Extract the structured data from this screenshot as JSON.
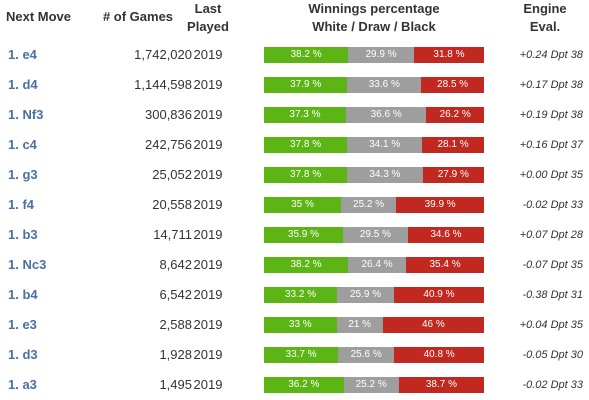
{
  "header": {
    "next_move": "Next Move",
    "games": "# of Games",
    "last_played_1": "Last",
    "last_played_2": "Played",
    "winnings_1": "Winnings percentage",
    "winnings_2": "White / Draw / Black",
    "engine_1": "Engine",
    "engine_2": "Eval."
  },
  "colors": {
    "white": "#5cb515",
    "draw": "#9e9e9e",
    "black": "#c02820",
    "move_link": "#4a6fa5"
  },
  "rows": [
    {
      "move": "1. e4",
      "games": "1,742,020",
      "played": "2019",
      "white": 38.2,
      "draw": 29.9,
      "black": 31.8,
      "white_label": "38.2 %",
      "draw_label": "29.9 %",
      "black_label": "31.8 %",
      "eval": "+0.24 Dpt 38"
    },
    {
      "move": "1. d4",
      "games": "1,144,598",
      "played": "2019",
      "white": 37.9,
      "draw": 33.6,
      "black": 28.5,
      "white_label": "37.9 %",
      "draw_label": "33.6 %",
      "black_label": "28.5 %",
      "eval": "+0.17 Dpt 38"
    },
    {
      "move": "1. Nf3",
      "games": "300,836",
      "played": "2019",
      "white": 37.3,
      "draw": 36.6,
      "black": 26.2,
      "white_label": "37.3 %",
      "draw_label": "36.6 %",
      "black_label": "26.2 %",
      "eval": "+0.19 Dpt 38"
    },
    {
      "move": "1. c4",
      "games": "242,756",
      "played": "2019",
      "white": 37.8,
      "draw": 34.1,
      "black": 28.1,
      "white_label": "37.8 %",
      "draw_label": "34.1 %",
      "black_label": "28.1 %",
      "eval": "+0.16 Dpt 37"
    },
    {
      "move": "1. g3",
      "games": "25,052",
      "played": "2019",
      "white": 37.8,
      "draw": 34.3,
      "black": 27.9,
      "white_label": "37.8 %",
      "draw_label": "34.3 %",
      "black_label": "27.9 %",
      "eval": "+0.00 Dpt 35"
    },
    {
      "move": "1. f4",
      "games": "20,558",
      "played": "2019",
      "white": 35,
      "draw": 25.2,
      "black": 39.9,
      "white_label": "35 %",
      "draw_label": "25.2 %",
      "black_label": "39.9 %",
      "eval": "-0.02 Dpt 33"
    },
    {
      "move": "1. b3",
      "games": "14,711",
      "played": "2019",
      "white": 35.9,
      "draw": 29.5,
      "black": 34.6,
      "white_label": "35.9 %",
      "draw_label": "29.5 %",
      "black_label": "34.6 %",
      "eval": "+0.07 Dpt 28"
    },
    {
      "move": "1. Nc3",
      "games": "8,642",
      "played": "2019",
      "white": 38.2,
      "draw": 26.4,
      "black": 35.4,
      "white_label": "38.2 %",
      "draw_label": "26.4 %",
      "black_label": "35.4 %",
      "eval": "-0.07 Dpt 35"
    },
    {
      "move": "1. b4",
      "games": "6,542",
      "played": "2019",
      "white": 33.2,
      "draw": 25.9,
      "black": 40.9,
      "white_label": "33.2 %",
      "draw_label": "25.9 %",
      "black_label": "40.9 %",
      "eval": "-0.38 Dpt 31"
    },
    {
      "move": "1. e3",
      "games": "2,588",
      "played": "2019",
      "white": 33,
      "draw": 21,
      "black": 46,
      "white_label": "33 %",
      "draw_label": "21 %",
      "black_label": "46 %",
      "eval": "+0.04 Dpt 35"
    },
    {
      "move": "1. d3",
      "games": "1,928",
      "played": "2019",
      "white": 33.7,
      "draw": 25.6,
      "black": 40.8,
      "white_label": "33.7 %",
      "draw_label": "25.6 %",
      "black_label": "40.8 %",
      "eval": "-0.05 Dpt 30"
    },
    {
      "move": "1. a3",
      "games": "1,495",
      "played": "2019",
      "white": 36.2,
      "draw": 25.2,
      "black": 38.7,
      "white_label": "36.2 %",
      "draw_label": "25.2 %",
      "black_label": "38.7 %",
      "eval": "-0.02 Dpt 33"
    }
  ]
}
